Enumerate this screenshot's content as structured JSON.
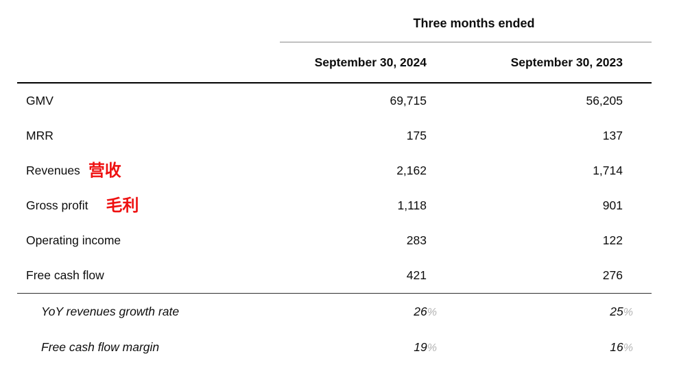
{
  "table": {
    "period_header": "Three months ended",
    "column_headers": [
      "September 30, 2024",
      "September 30, 2023"
    ],
    "rows": [
      {
        "label": "GMV",
        "values": [
          "69,715",
          "56,205"
        ]
      },
      {
        "label": "MRR",
        "values": [
          "175",
          "137"
        ]
      },
      {
        "label": "Revenues",
        "annotation": "营收",
        "values": [
          "2,162",
          "1,714"
        ]
      },
      {
        "label": "Gross profit",
        "annotation": "毛利",
        "values": [
          "1,118",
          "901"
        ]
      },
      {
        "label": "Operating income",
        "values": [
          "283",
          "122"
        ]
      },
      {
        "label": "Free cash flow",
        "values": [
          "421",
          "276"
        ]
      }
    ],
    "ratio_rows": [
      {
        "label": "YoY revenues growth rate",
        "values": [
          "26",
          "25"
        ],
        "unit": "%"
      },
      {
        "label": "Free cash flow margin",
        "values": [
          "19",
          "16"
        ],
        "unit": "%"
      }
    ]
  },
  "colors": {
    "text": "#0d0d0d",
    "annotation_red": "#ee1111",
    "percent_gray": "#b3b3b3"
  }
}
